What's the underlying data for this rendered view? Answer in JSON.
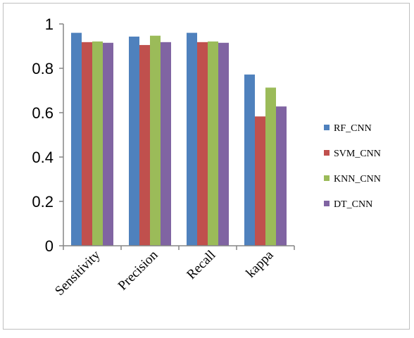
{
  "chart_data": {
    "type": "bar",
    "title": "",
    "xlabel": "",
    "ylabel": "",
    "categories": [
      "Sensitivity",
      "Precision",
      "Recall",
      "kappa"
    ],
    "series": [
      {
        "name": "RF_CNN",
        "color": "#4f81bd",
        "values": [
          0.96,
          0.943,
          0.96,
          0.772
        ]
      },
      {
        "name": "SVM_CNN",
        "color": "#c0504d",
        "values": [
          0.918,
          0.905,
          0.918,
          0.583
        ]
      },
      {
        "name": "KNN_CNN",
        "color": "#9bbb59",
        "values": [
          0.921,
          0.947,
          0.921,
          0.713
        ]
      },
      {
        "name": "DT_CNN",
        "color": "#8064a2",
        "values": [
          0.915,
          0.918,
          0.915,
          0.628
        ]
      }
    ],
    "ylim": [
      0,
      1
    ],
    "yticks": [
      "0",
      "0.2",
      "0.4",
      "0.6",
      "0.8",
      "1"
    ],
    "grid": false,
    "legend_position": "right"
  }
}
